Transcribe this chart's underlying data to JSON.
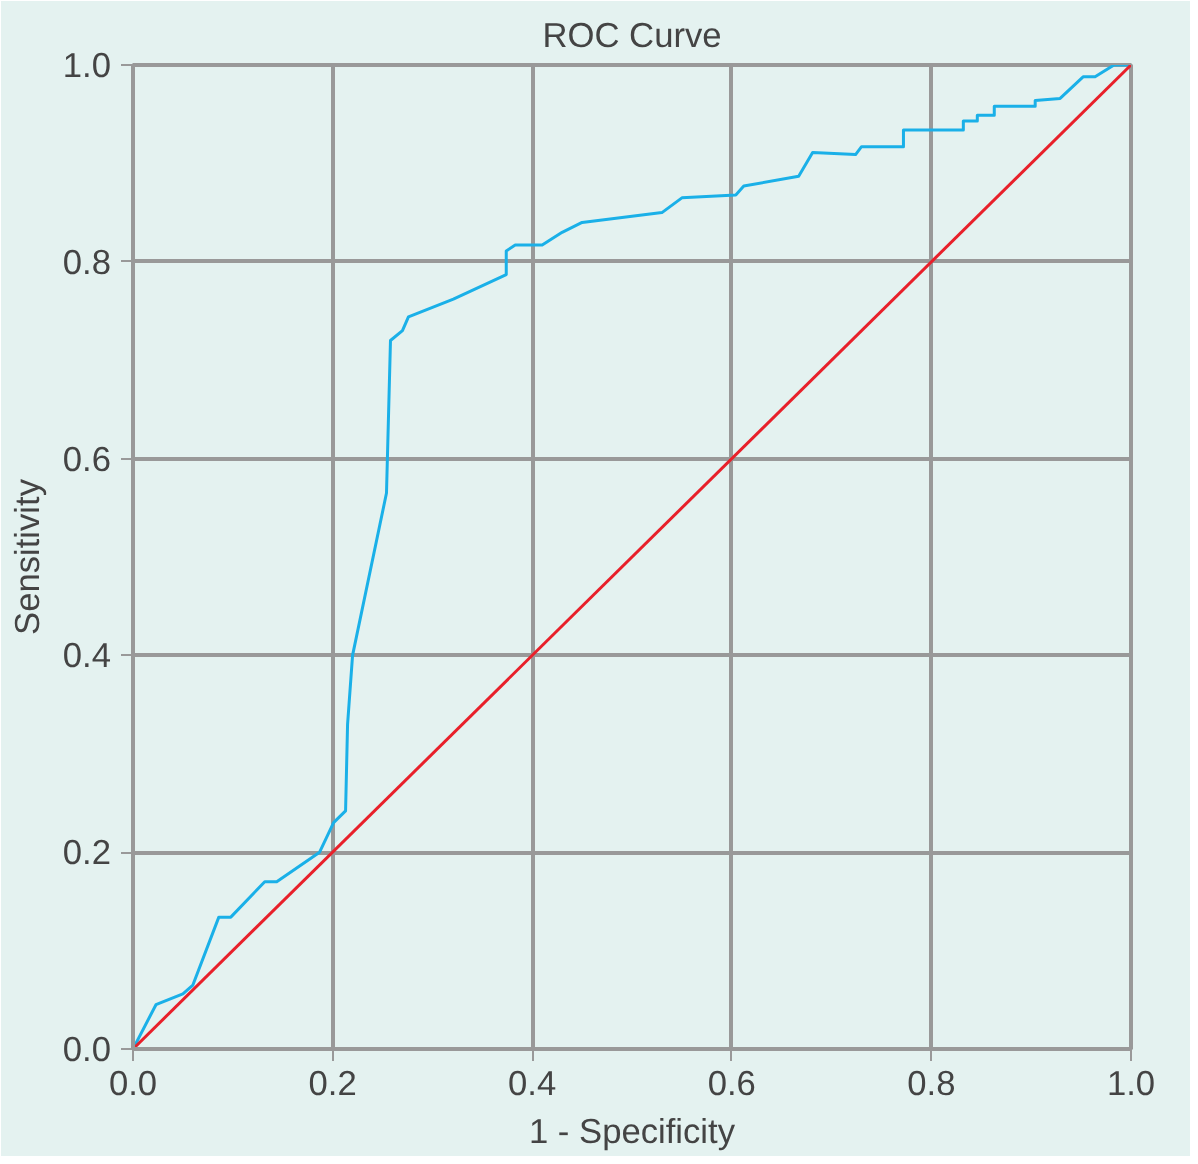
{
  "chart_data": {
    "type": "line",
    "title": "ROC Curve",
    "xlabel": "1 - Specificity",
    "ylabel": "Sensitivity",
    "xlim": [
      0,
      1
    ],
    "ylim": [
      0,
      1
    ],
    "xticks": [
      {
        "value": 0,
        "label": "0.0"
      },
      {
        "value": 0.2,
        "label": "0.2"
      },
      {
        "value": 0.4,
        "label": "0.4"
      },
      {
        "value": 0.6,
        "label": "0.6"
      },
      {
        "value": 0.8,
        "label": "0.8"
      },
      {
        "value": 1,
        "label": "1.0"
      }
    ],
    "yticks": [
      {
        "value": 0,
        "label": "0.0"
      },
      {
        "value": 0.2,
        "label": "0.2"
      },
      {
        "value": 0.4,
        "label": "0.4"
      },
      {
        "value": 0.6,
        "label": "0.6"
      },
      {
        "value": 0.8,
        "label": "0.8"
      },
      {
        "value": 1,
        "label": "1.0"
      }
    ],
    "grid": true,
    "series": [
      {
        "color": "#1ab0e8",
        "x": [
          0,
          0.023,
          0.05,
          0.06,
          0.086,
          0.098,
          0.132,
          0.144,
          0.187,
          0.201,
          0.213,
          0.213,
          0.215,
          0.22,
          0.254,
          0.258,
          0.27,
          0.276,
          0.321,
          0.374,
          0.374,
          0.383,
          0.41,
          0.43,
          0.45,
          0.53,
          0.55,
          0.604,
          0.612,
          0.667,
          0.681,
          0.724,
          0.73,
          0.772,
          0.772,
          0.832,
          0.832,
          0.846,
          0.846,
          0.863,
          0.863,
          0.904,
          0.904,
          0.929,
          0.952,
          0.964,
          0.983,
          1.0
        ],
        "values": [
          0,
          0.045,
          0.056,
          0.065,
          0.134,
          0.134,
          0.17,
          0.17,
          0.2,
          0.23,
          0.242,
          0.242,
          0.33,
          0.4,
          0.565,
          0.72,
          0.73,
          0.744,
          0.762,
          0.787,
          0.811,
          0.817,
          0.817,
          0.83,
          0.84,
          0.85,
          0.865,
          0.868,
          0.877,
          0.887,
          0.911,
          0.909,
          0.917,
          0.917,
          0.934,
          0.934,
          0.943,
          0.943,
          0.949,
          0.949,
          0.958,
          0.958,
          0.964,
          0.966,
          0.988,
          0.988,
          1.0,
          1.0
        ]
      },
      {
        "color": "#e8202a",
        "x": [
          0,
          1
        ],
        "values": [
          0,
          1
        ]
      }
    ]
  }
}
